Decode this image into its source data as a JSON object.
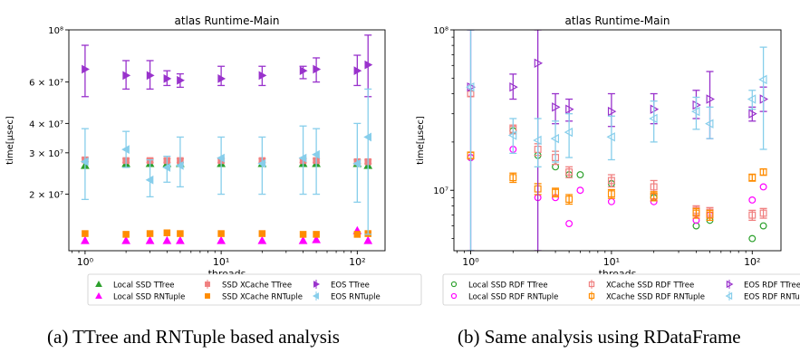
{
  "panels": [
    {
      "caption": "(a) TTree and RNTuple based analysis",
      "chart_data": {
        "type": "scatter",
        "title": "atlas Runtime-Main",
        "xlabel": "threads",
        "ylabel": "time[µsec]",
        "x_scale": "log",
        "y_scale": "log",
        "xlim": [
          0.76,
          160
        ],
        "ylim": [
          11500000,
          100000000
        ],
        "x_ticks": [
          {
            "v": 1,
            "label": "10⁰"
          },
          {
            "v": 10,
            "label": "10¹"
          },
          {
            "v": 100,
            "label": "10²"
          }
        ],
        "y_ticks": [
          {
            "v": 20000000,
            "label": "2 × 10⁷"
          },
          {
            "v": 30000000,
            "label": "3 × 10⁷"
          },
          {
            "v": 40000000,
            "label": "4 × 10⁷"
          },
          {
            "v": 60000000,
            "label": "6 × 10⁷"
          },
          {
            "v": 100000000,
            "label": "10⁸"
          }
        ],
        "legend_position": "below",
        "series": [
          {
            "name": "Local SSD TTree",
            "color": "#2ca02c",
            "marker": "triangle-up",
            "filled": true,
            "x": [
              1,
              2,
              3,
              4,
              5,
              10,
              20,
              40,
              50,
              100,
              120
            ],
            "y": [
              26500000,
              27000000,
              27000000,
              27000000,
              27000000,
              27000000,
              27000000,
              27000000,
              27000000,
              27000000,
              26500000
            ]
          },
          {
            "name": "Local SSD RNTuple",
            "color": "#ff00ff",
            "marker": "triangle-up",
            "filled": true,
            "x": [
              1,
              2,
              3,
              4,
              5,
              10,
              20,
              40,
              50,
              100,
              120
            ],
            "y": [
              12700000,
              12700000,
              12700000,
              12700000,
              12700000,
              12700000,
              12700000,
              12700000,
              12800000,
              14000000,
              12700000
            ]
          },
          {
            "name": "SSD XCache TTree",
            "color": "#f08080",
            "marker": "square",
            "filled": true,
            "x": [
              1,
              2,
              3,
              4,
              5,
              10,
              20,
              40,
              50,
              100,
              120
            ],
            "y": [
              28000000,
              27800000,
              27800000,
              27800000,
              27800000,
              27800000,
              27800000,
              27800000,
              27800000,
              27500000,
              27500000
            ],
            "err": [
              500000,
              500000,
              500000,
              500000,
              500000,
              500000,
              500000,
              500000,
              500000,
              500000,
              500000
            ]
          },
          {
            "name": "SSD XCache RNTuple",
            "color": "#ff8c00",
            "marker": "square",
            "filled": true,
            "x": [
              1,
              2,
              3,
              4,
              5,
              10,
              20,
              40,
              50,
              100,
              120
            ],
            "y": [
              13600000,
              13500000,
              13600000,
              13700000,
              13600000,
              13600000,
              13600000,
              13500000,
              13500000,
              13500000,
              13600000
            ]
          },
          {
            "name": "EOS TTree",
            "color": "#9932cc",
            "marker": "triangle-right",
            "filled": true,
            "x": [
              1,
              2,
              3,
              4,
              5,
              10,
              20,
              40,
              50,
              100,
              120
            ],
            "y": [
              68000000,
              64000000,
              64000000,
              62000000,
              61000000,
              62000000,
              64000000,
              67000000,
              68000000,
              67000000,
              71000000
            ],
            "err_low": [
              52000000,
              56000000,
              56000000,
              58000000,
              57000000,
              58000000,
              58000000,
              62000000,
              60000000,
              58000000,
              52000000
            ],
            "err_high": [
              86000000,
              74000000,
              74000000,
              67000000,
              65000000,
              70000000,
              70000000,
              70000000,
              76000000,
              78000000,
              95000000
            ]
          },
          {
            "name": "EOS RNTuple",
            "color": "#87ceeb",
            "marker": "triangle-left",
            "filled": true,
            "x": [
              1,
              2,
              3,
              4,
              5,
              10,
              20,
              40,
              50,
              100,
              120
            ],
            "y": [
              27500000,
              31000000,
              23000000,
              26000000,
              26500000,
              28500000,
              27000000,
              28500000,
              29500000,
              27000000,
              35000000
            ],
            "err_low": [
              19000000,
              26000000,
              19500000,
              22500000,
              21500000,
              20000000,
              20000000,
              20000000,
              20000000,
              18500000,
              13500000
            ],
            "err_high": [
              38000000,
              37000000,
              28000000,
              29000000,
              35000000,
              35000000,
              35000000,
              39000000,
              38000000,
              40000000,
              56000000
            ]
          }
        ]
      }
    },
    {
      "caption": "(b) Same analysis using RDataFrame",
      "chart_data": {
        "type": "scatter",
        "title": "atlas Runtime-Main",
        "xlabel": "threads",
        "ylabel": "time[µsec]",
        "x_scale": "log",
        "y_scale": "log",
        "xlim": [
          0.76,
          160
        ],
        "ylim": [
          4200000,
          100000000
        ],
        "x_ticks": [
          {
            "v": 1,
            "label": "10⁰"
          },
          {
            "v": 10,
            "label": "10¹"
          },
          {
            "v": 100,
            "label": "10²"
          }
        ],
        "y_ticks": [
          {
            "v": 10000000,
            "label": "10⁷"
          },
          {
            "v": 100000000,
            "label": "10⁸"
          }
        ],
        "legend_position": "below",
        "series": [
          {
            "name": "Local SSD RDF TTree",
            "color": "#2ca02c",
            "marker": "circle",
            "filled": false,
            "x": [
              1,
              2,
              3,
              4,
              5,
              6,
              10,
              20,
              40,
              50,
              100,
              120
            ],
            "y": [
              16000000,
              23500000,
              16500000,
              14000000,
              12500000,
              12500000,
              11000000,
              9000000,
              6000000,
              6500000,
              5000000,
              6000000
            ]
          },
          {
            "name": "Local SSD RDF RNTuple",
            "color": "#ff00ff",
            "marker": "circle",
            "filled": false,
            "x": [
              1,
              2,
              3,
              4,
              5,
              6,
              10,
              20,
              40,
              50,
              100,
              120
            ],
            "y": [
              16000000,
              18000000,
              9000000,
              9000000,
              6200000,
              10000000,
              8500000,
              8500000,
              6500000,
              7000000,
              8700000,
              10500000
            ]
          },
          {
            "name": "XCache SSD RDF TTree",
            "color": "#f08080",
            "marker": "square",
            "filled": false,
            "x": [
              1,
              2,
              3,
              4,
              5,
              10,
              20,
              40,
              50,
              100,
              120
            ],
            "y": [
              40000000,
              24000000,
              18000000,
              16000000,
              13000000,
              11500000,
              10500000,
              7500000,
              7300000,
              7000000,
              7200000
            ],
            "err": [
              1500000,
              1500000,
              1500000,
              1500000,
              1000000,
              1000000,
              1000000,
              500000,
              500000,
              500000,
              500000
            ]
          },
          {
            "name": "XCache SSD RDF RNTuple",
            "color": "#ff8c00",
            "marker": "square",
            "filled": false,
            "x": [
              1,
              2,
              3,
              4,
              5,
              10,
              20,
              40,
              50,
              100,
              120
            ],
            "y": [
              16500000,
              12000000,
              10200000,
              9700000,
              8800000,
              9500000,
              9200000,
              7200000,
              7000000,
              12000000,
              13000000
            ],
            "err": [
              800000,
              800000,
              800000,
              600000,
              600000,
              600000,
              600000,
              500000,
              500000,
              600000,
              600000
            ]
          },
          {
            "name": "EOS RDF TTree",
            "color": "#9932cc",
            "marker": "triangle-right",
            "filled": false,
            "x": [
              1,
              2,
              3,
              4,
              5,
              10,
              20,
              40,
              50,
              100,
              120
            ],
            "y": [
              44000000,
              44000000,
              62000000,
              33000000,
              32000000,
              31000000,
              32000000,
              34000000,
              37000000,
              30000000,
              37000000
            ],
            "err_low": [
              4200000,
              37000000,
              4200000,
              26000000,
              27000000,
              25000000,
              26000000,
              28000000,
              21000000,
              27000000,
              31000000
            ],
            "err_high": [
              100000000,
              53000000,
              100000000,
              40000000,
              37000000,
              40000000,
              40000000,
              42000000,
              55000000,
              33000000,
              44000000
            ]
          },
          {
            "name": "EOS RDF RNTuple",
            "color": "#87ceeb",
            "marker": "triangle-left",
            "filled": false,
            "x": [
              1,
              2,
              3,
              4,
              5,
              10,
              20,
              40,
              50,
              100,
              120
            ],
            "y": [
              44000000,
              22000000,
              20500000,
              21000000,
              23000000,
              21500000,
              28000000,
              31000000,
              26000000,
              37000000,
              49000000
            ],
            "err_low": [
              4200000,
              17000000,
              14000000,
              15000000,
              16000000,
              15500000,
              20000000,
              24000000,
              21000000,
              32000000,
              18000000
            ],
            "err_high": [
              100000000,
              28000000,
              28000000,
              27000000,
              30000000,
              29000000,
              36000000,
              38000000,
              33000000,
              42000000,
              78000000
            ]
          }
        ]
      }
    }
  ]
}
